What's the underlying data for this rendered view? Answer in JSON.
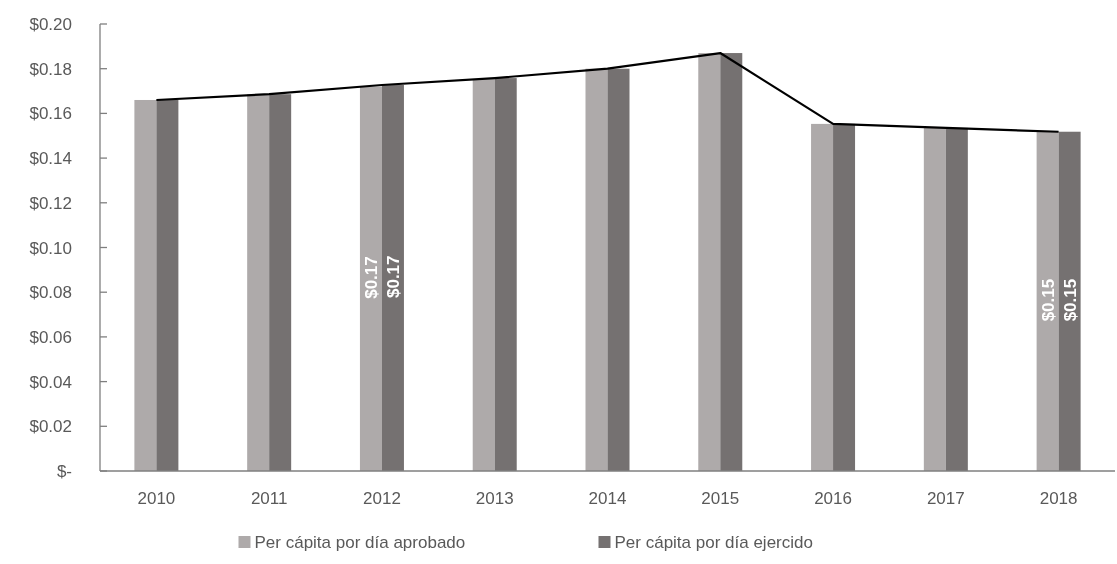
{
  "chart_data": {
    "type": "bar",
    "categories": [
      "2010",
      "2011",
      "2012",
      "2013",
      "2014",
      "2015",
      "2016",
      "2017",
      "2018"
    ],
    "series": [
      {
        "name": "Per cápita por día aprobado",
        "color": "#aeaaaa",
        "values": [
          0.166,
          0.1686,
          0.172,
          0.1754,
          0.18,
          0.187,
          0.1553,
          0.1535,
          0.1518
        ],
        "value_labels": [
          null,
          null,
          "$0.17",
          null,
          null,
          null,
          null,
          null,
          "$0.15"
        ]
      },
      {
        "name": "Per cápita por día ejercido",
        "color": "#757171",
        "values": [
          0.166,
          0.1686,
          0.1727,
          0.1758,
          0.18,
          0.187,
          0.1553,
          0.1535,
          0.1518
        ],
        "value_labels": [
          null,
          null,
          "$0.17",
          null,
          null,
          null,
          null,
          null,
          "$0.15"
        ]
      },
      {
        "type": "line",
        "color": "#000000",
        "values": [
          0.166,
          0.1686,
          0.1727,
          0.1758,
          0.18,
          0.187,
          0.1553,
          0.1535,
          0.1518
        ]
      }
    ],
    "ylim": [
      0,
      0.2
    ],
    "yticks": [
      {
        "value": 0,
        "label": "$-"
      },
      {
        "value": 0.02,
        "label": "$0.02"
      },
      {
        "value": 0.04,
        "label": "$0.04"
      },
      {
        "value": 0.06,
        "label": "$0.06"
      },
      {
        "value": 0.08,
        "label": "$0.08"
      },
      {
        "value": 0.1,
        "label": "$0.10"
      },
      {
        "value": 0.12,
        "label": "$0.12"
      },
      {
        "value": 0.14,
        "label": "$0.14"
      },
      {
        "value": 0.16,
        "label": "$0.16"
      },
      {
        "value": 0.18,
        "label": "$0.18"
      },
      {
        "value": 0.2,
        "label": "$0.20"
      }
    ],
    "grid": false,
    "legend": "bottom",
    "marker": "none",
    "line_style": "solid"
  }
}
